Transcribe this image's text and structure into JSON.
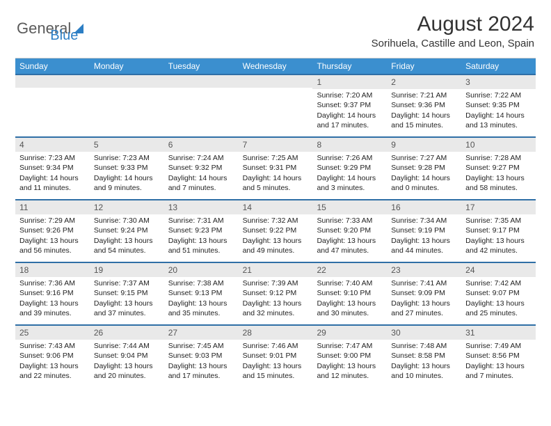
{
  "brand": {
    "name1": "General",
    "name2": "Blue"
  },
  "title": "August 2024",
  "location": "Sorihuela, Castille and Leon, Spain",
  "colors": {
    "header_bg": "#3b8fcf",
    "week_border": "#2f6fa6",
    "daynum_bg": "#e9e9e9",
    "text": "#222222",
    "logo_gray": "#5a5a5a",
    "logo_blue": "#2c7ec4"
  },
  "weekdays": [
    "Sunday",
    "Monday",
    "Tuesday",
    "Wednesday",
    "Thursday",
    "Friday",
    "Saturday"
  ],
  "weeks": [
    [
      {
        "blank": true
      },
      {
        "blank": true
      },
      {
        "blank": true
      },
      {
        "blank": true
      },
      {
        "n": "1",
        "sr": "7:20 AM",
        "ss": "9:37 PM",
        "dl": "14 hours and 17 minutes."
      },
      {
        "n": "2",
        "sr": "7:21 AM",
        "ss": "9:36 PM",
        "dl": "14 hours and 15 minutes."
      },
      {
        "n": "3",
        "sr": "7:22 AM",
        "ss": "9:35 PM",
        "dl": "14 hours and 13 minutes."
      }
    ],
    [
      {
        "n": "4",
        "sr": "7:23 AM",
        "ss": "9:34 PM",
        "dl": "14 hours and 11 minutes."
      },
      {
        "n": "5",
        "sr": "7:23 AM",
        "ss": "9:33 PM",
        "dl": "14 hours and 9 minutes."
      },
      {
        "n": "6",
        "sr": "7:24 AM",
        "ss": "9:32 PM",
        "dl": "14 hours and 7 minutes."
      },
      {
        "n": "7",
        "sr": "7:25 AM",
        "ss": "9:31 PM",
        "dl": "14 hours and 5 minutes."
      },
      {
        "n": "8",
        "sr": "7:26 AM",
        "ss": "9:29 PM",
        "dl": "14 hours and 3 minutes."
      },
      {
        "n": "9",
        "sr": "7:27 AM",
        "ss": "9:28 PM",
        "dl": "14 hours and 0 minutes."
      },
      {
        "n": "10",
        "sr": "7:28 AM",
        "ss": "9:27 PM",
        "dl": "13 hours and 58 minutes."
      }
    ],
    [
      {
        "n": "11",
        "sr": "7:29 AM",
        "ss": "9:26 PM",
        "dl": "13 hours and 56 minutes."
      },
      {
        "n": "12",
        "sr": "7:30 AM",
        "ss": "9:24 PM",
        "dl": "13 hours and 54 minutes."
      },
      {
        "n": "13",
        "sr": "7:31 AM",
        "ss": "9:23 PM",
        "dl": "13 hours and 51 minutes."
      },
      {
        "n": "14",
        "sr": "7:32 AM",
        "ss": "9:22 PM",
        "dl": "13 hours and 49 minutes."
      },
      {
        "n": "15",
        "sr": "7:33 AM",
        "ss": "9:20 PM",
        "dl": "13 hours and 47 minutes."
      },
      {
        "n": "16",
        "sr": "7:34 AM",
        "ss": "9:19 PM",
        "dl": "13 hours and 44 minutes."
      },
      {
        "n": "17",
        "sr": "7:35 AM",
        "ss": "9:17 PM",
        "dl": "13 hours and 42 minutes."
      }
    ],
    [
      {
        "n": "18",
        "sr": "7:36 AM",
        "ss": "9:16 PM",
        "dl": "13 hours and 39 minutes."
      },
      {
        "n": "19",
        "sr": "7:37 AM",
        "ss": "9:15 PM",
        "dl": "13 hours and 37 minutes."
      },
      {
        "n": "20",
        "sr": "7:38 AM",
        "ss": "9:13 PM",
        "dl": "13 hours and 35 minutes."
      },
      {
        "n": "21",
        "sr": "7:39 AM",
        "ss": "9:12 PM",
        "dl": "13 hours and 32 minutes."
      },
      {
        "n": "22",
        "sr": "7:40 AM",
        "ss": "9:10 PM",
        "dl": "13 hours and 30 minutes."
      },
      {
        "n": "23",
        "sr": "7:41 AM",
        "ss": "9:09 PM",
        "dl": "13 hours and 27 minutes."
      },
      {
        "n": "24",
        "sr": "7:42 AM",
        "ss": "9:07 PM",
        "dl": "13 hours and 25 minutes."
      }
    ],
    [
      {
        "n": "25",
        "sr": "7:43 AM",
        "ss": "9:06 PM",
        "dl": "13 hours and 22 minutes."
      },
      {
        "n": "26",
        "sr": "7:44 AM",
        "ss": "9:04 PM",
        "dl": "13 hours and 20 minutes."
      },
      {
        "n": "27",
        "sr": "7:45 AM",
        "ss": "9:03 PM",
        "dl": "13 hours and 17 minutes."
      },
      {
        "n": "28",
        "sr": "7:46 AM",
        "ss": "9:01 PM",
        "dl": "13 hours and 15 minutes."
      },
      {
        "n": "29",
        "sr": "7:47 AM",
        "ss": "9:00 PM",
        "dl": "13 hours and 12 minutes."
      },
      {
        "n": "30",
        "sr": "7:48 AM",
        "ss": "8:58 PM",
        "dl": "13 hours and 10 minutes."
      },
      {
        "n": "31",
        "sr": "7:49 AM",
        "ss": "8:56 PM",
        "dl": "13 hours and 7 minutes."
      }
    ]
  ],
  "labels": {
    "sunrise": "Sunrise:",
    "sunset": "Sunset:",
    "daylight": "Daylight:"
  }
}
